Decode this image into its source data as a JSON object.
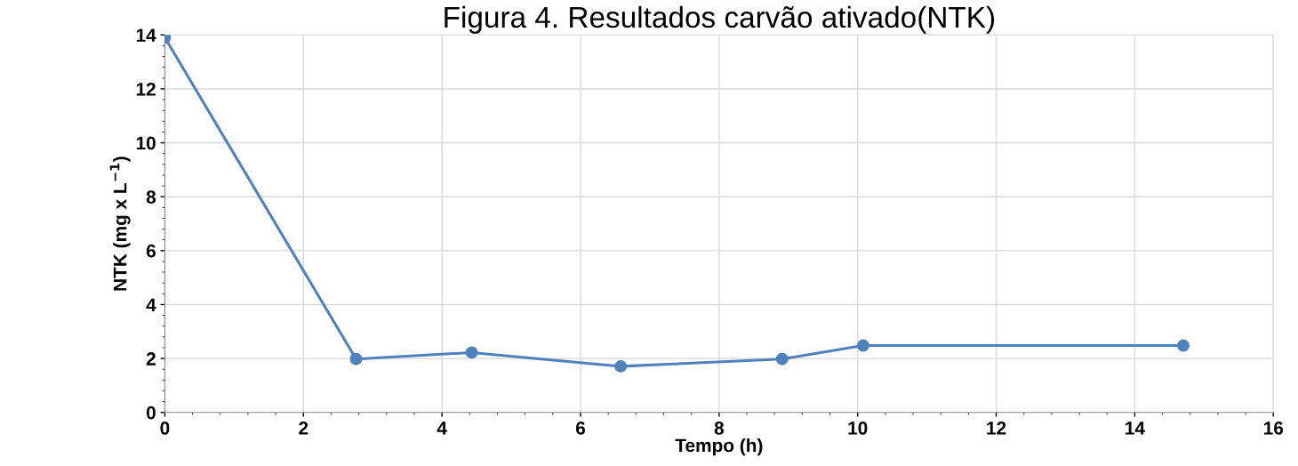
{
  "chart_data": {
    "type": "line",
    "title": "Figura 4. Resultados carvão ativado(NTK)",
    "xlabel": "Tempo (h)",
    "ylabel": "NTK (mg x L$^{−1}$)",
    "x": [
      0,
      2.76,
      4.43,
      6.58,
      8.91,
      10.08,
      14.7
    ],
    "series": [
      {
        "color": "#4f81bd",
        "values": [
          13.9,
          1.98,
          2.22,
          1.71,
          1.98,
          2.48,
          2.48
        ]
      }
    ],
    "xlim": [
      0,
      16
    ],
    "xticks": [
      0,
      2,
      4,
      6,
      8,
      10,
      12,
      14,
      16
    ],
    "ylim": [
      0,
      14
    ],
    "yticks": [
      0,
      2,
      4,
      6,
      8,
      10,
      12,
      14
    ],
    "grid": true,
    "marker": "circle",
    "line_style": "solid"
  }
}
